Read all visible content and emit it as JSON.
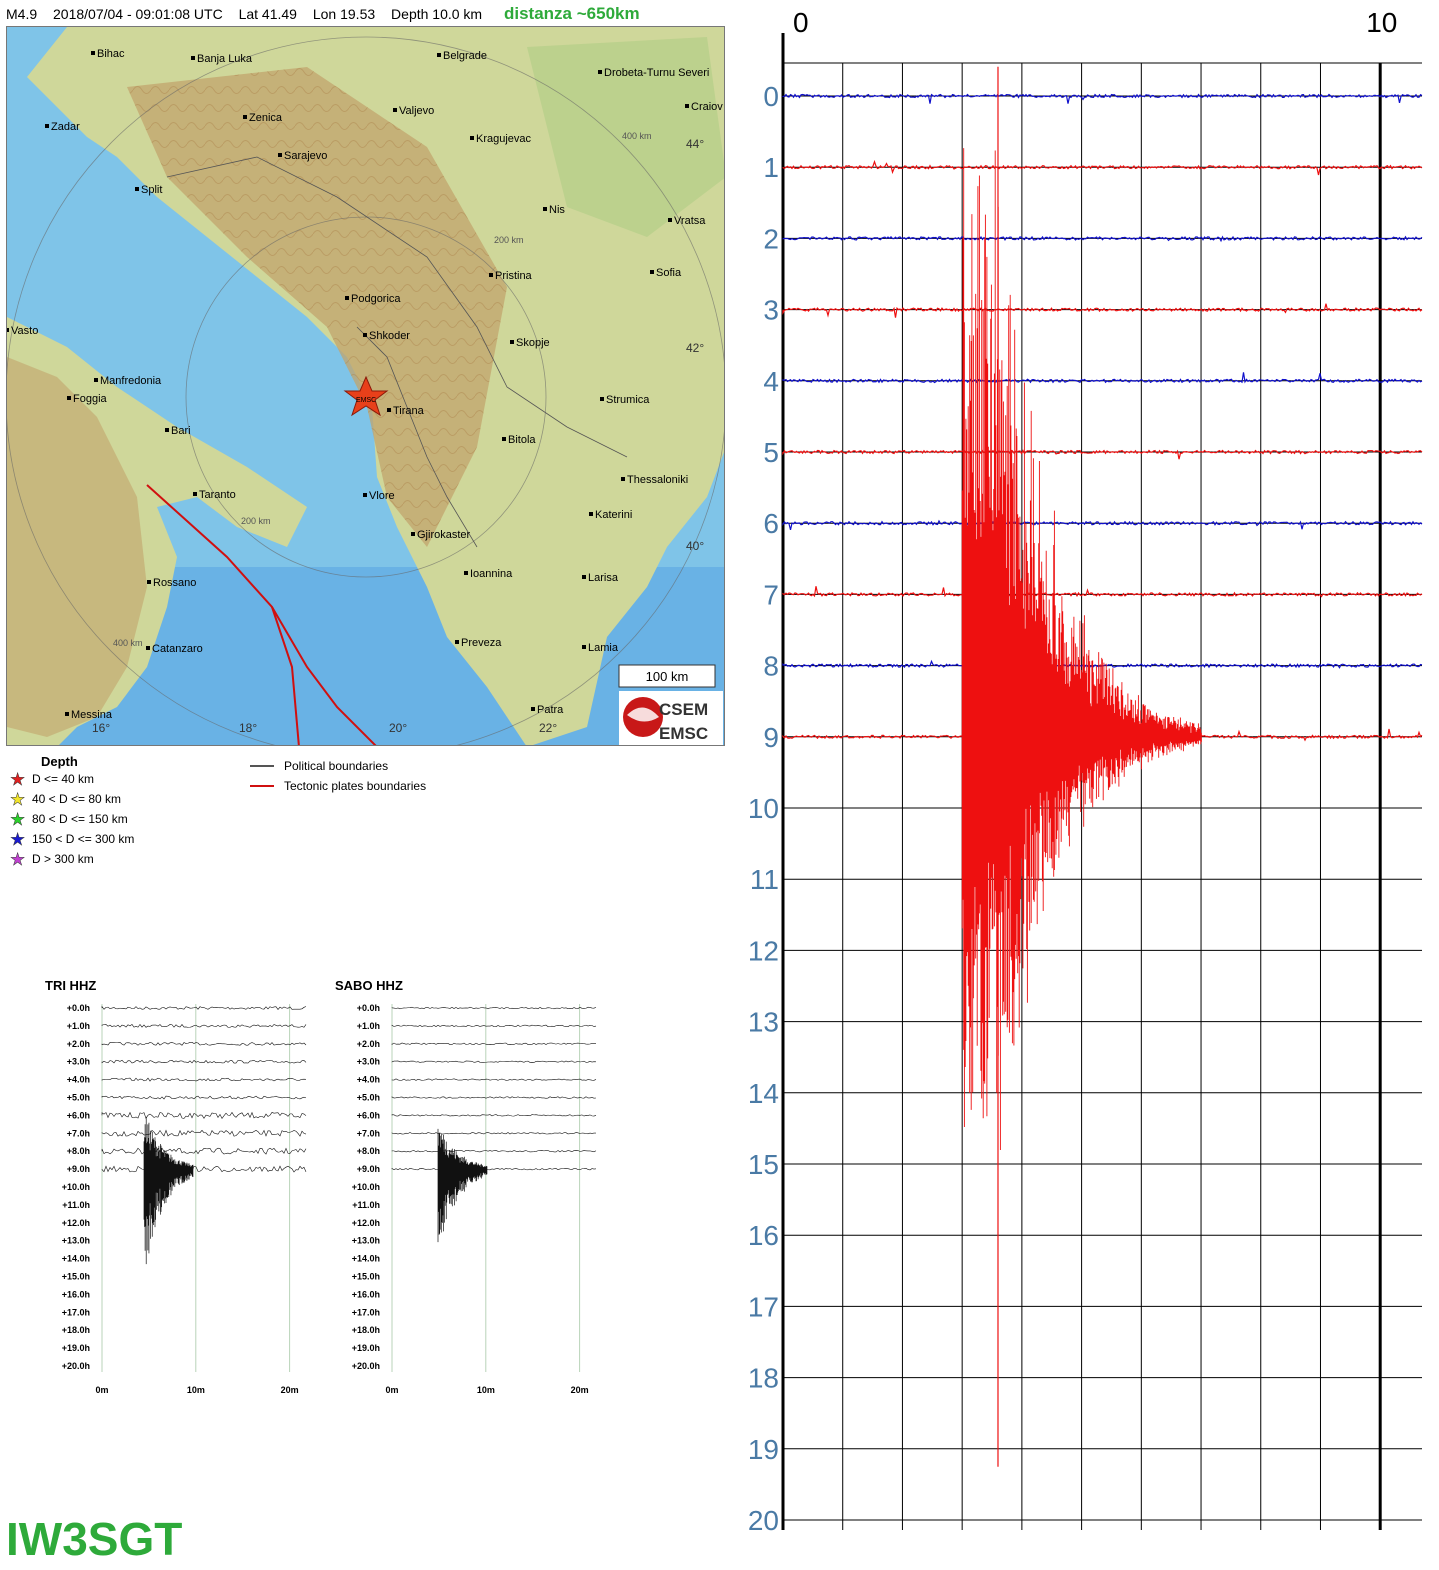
{
  "header": {
    "magnitude": "M4.9",
    "datetime": "2018/07/04 - 09:01:08 UTC",
    "lat": "Lat 41.49",
    "lon": "Lon 19.53",
    "depth": "Depth  10.0 km",
    "distance": "distanza ~650km"
  },
  "map": {
    "cities": [
      "Bihac",
      "Banja Luka",
      "Belgrade",
      "Drobeta-Turnu Severi",
      "Zadar",
      "Zenica",
      "Valjevo",
      "Craiov",
      "Sarajevo",
      "Kragujevac",
      "Split",
      "Nis",
      "Vratsa",
      "Pristina",
      "Sofia",
      "Podgorica",
      "Vasto",
      "Shkoder",
      "Skopje",
      "Manfredonia",
      "Foggia",
      "Tirana",
      "Strumica",
      "Bari",
      "Bitola",
      "Thessaloniki",
      "Taranto",
      "Vlore",
      "Katerini",
      "Gjirokaster",
      "Ioannina",
      "Larisa",
      "Rossano",
      "Preveza",
      "Catanzaro",
      "Lamia",
      "Messina",
      "Patra"
    ],
    "ring_labels": [
      "400 km",
      "200 km",
      "200 km",
      "400 km"
    ],
    "lat_labels": [
      "44°",
      "42°",
      "40°"
    ],
    "lon_labels": [
      "16°",
      "18°",
      "20°",
      "22°"
    ],
    "epicenter_label": "EMSC",
    "scale_bar": "100 km",
    "logo_top": "CSEM",
    "logo_bottom": "EMSC"
  },
  "legend": {
    "depth_title": "Depth",
    "depth_classes": [
      {
        "label": "D <= 40 km",
        "color": "#e02020"
      },
      {
        "label": "40 < D <= 80 km",
        "color": "#f2e52a"
      },
      {
        "label": "80 < D <= 150 km",
        "color": "#2bd12b"
      },
      {
        "label": "150 < D <= 300 km",
        "color": "#1a1ad0"
      },
      {
        "label": "D > 300 km",
        "color": "#c040d0"
      }
    ],
    "political": "Political boundaries",
    "tectonic": "Tectonic plates boundaries"
  },
  "mini_charts": [
    {
      "title": "TRI HHZ",
      "hour_labels": [
        "+0.0h",
        "+1.0h",
        "+2.0h",
        "+3.0h",
        "+4.0h",
        "+5.0h",
        "+6.0h",
        "+7.0h",
        "+8.0h",
        "+9.0h",
        "+10.0h",
        "+11.0h",
        "+12.0h",
        "+13.0h",
        "+14.0h",
        "+15.0h",
        "+16.0h",
        "+17.0h",
        "+18.0h",
        "+19.0h",
        "+20.0h"
      ],
      "x_labels": [
        "0m",
        "10m",
        "20m"
      ],
      "active_rows": 10
    },
    {
      "title": "SABO HHZ",
      "hour_labels": [
        "+0.0h",
        "+1.0h",
        "+2.0h",
        "+3.0h",
        "+4.0h",
        "+5.0h",
        "+6.0h",
        "+7.0h",
        "+8.0h",
        "+9.0h",
        "+10.0h",
        "+11.0h",
        "+12.0h",
        "+13.0h",
        "+14.0h",
        "+15.0h",
        "+16.0h",
        "+17.0h",
        "+18.0h",
        "+19.0h",
        "+20.0h"
      ],
      "x_labels": [
        "0m",
        "10m",
        "20m"
      ],
      "active_rows": 10
    }
  ],
  "chart_data": {
    "type": "line",
    "title": "",
    "x_labels": [
      "0",
      "10"
    ],
    "xlim": [
      0,
      10.7
    ],
    "row_labels": [
      "0",
      "1",
      "2",
      "3",
      "4",
      "5",
      "6",
      "7",
      "8",
      "9",
      "10",
      "11",
      "12",
      "13",
      "14",
      "15",
      "16",
      "17",
      "18",
      "19",
      "20"
    ],
    "series_colors": [
      "#1010cc",
      "#ee1010"
    ],
    "traces": [
      {
        "row": 0,
        "color": "blue",
        "event": false
      },
      {
        "row": 1,
        "color": "red",
        "event": false
      },
      {
        "row": 2,
        "color": "blue",
        "event": false
      },
      {
        "row": 3,
        "color": "red",
        "event": false
      },
      {
        "row": 4,
        "color": "blue",
        "event": false
      },
      {
        "row": 5,
        "color": "red",
        "event": false
      },
      {
        "row": 6,
        "color": "blue",
        "event": false
      },
      {
        "row": 7,
        "color": "red",
        "event": false
      },
      {
        "row": 8,
        "color": "blue",
        "event": false
      },
      {
        "row": 9,
        "color": "red",
        "event": true
      }
    ],
    "event_onset_minute": 3.0,
    "event_peak_minute": 3.6
  },
  "station": "IW3SGT"
}
